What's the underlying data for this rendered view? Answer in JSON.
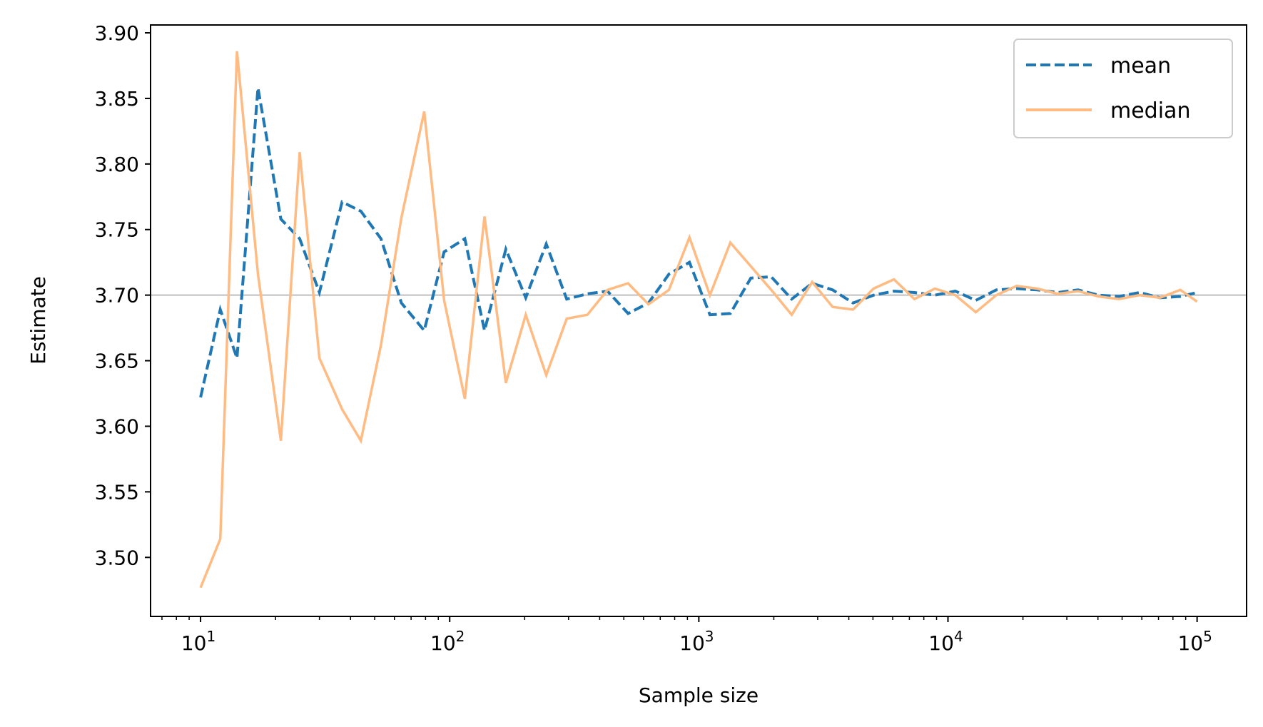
{
  "chart_data": {
    "type": "line",
    "title": "",
    "xlabel": "Sample size",
    "ylabel": "Estimate",
    "xscale": "log",
    "xlim": [
      6.3,
      158000
    ],
    "ylim": [
      3.455,
      3.906
    ],
    "x_ticks": [
      {
        "base": "10",
        "exp": "1",
        "value": 10
      },
      {
        "base": "10",
        "exp": "2",
        "value": 100
      },
      {
        "base": "10",
        "exp": "3",
        "value": 1000
      },
      {
        "base": "10",
        "exp": "4",
        "value": 10000
      },
      {
        "base": "10",
        "exp": "5",
        "value": 100000
      }
    ],
    "y_ticks": [
      "3.50",
      "3.55",
      "3.60",
      "3.65",
      "3.70",
      "3.75",
      "3.80",
      "3.85",
      "3.90"
    ],
    "reference_line": {
      "y": 3.7,
      "color": "#bfbfbf"
    },
    "legend_position": "top-right",
    "series": [
      {
        "name": "mean",
        "color": "#1f77b4",
        "style": "dashed",
        "x": [
          10,
          12,
          14,
          17,
          21,
          25,
          30,
          37,
          44,
          53,
          64,
          79,
          95,
          115,
          138,
          168,
          202,
          244,
          295,
          357,
          430,
          520,
          628,
          759,
          917,
          1108,
          1338,
          1617,
          1953,
          2360,
          2851,
          3444,
          4160,
          5026,
          6072,
          7336,
          8862,
          10706,
          12934,
          15626,
          18877,
          22805,
          27552,
          33285,
          40212,
          48580,
          58690,
          70904,
          85659,
          100000
        ],
        "values": [
          3.622,
          3.689,
          3.652,
          3.858,
          3.758,
          3.743,
          3.702,
          3.771,
          3.764,
          3.743,
          3.694,
          3.673,
          3.733,
          3.743,
          3.673,
          3.735,
          3.698,
          3.739,
          3.697,
          3.701,
          3.703,
          3.686,
          3.694,
          3.716,
          3.725,
          3.685,
          3.686,
          3.713,
          3.714,
          3.697,
          3.709,
          3.704,
          3.694,
          3.7,
          3.703,
          3.702,
          3.7,
          3.703,
          3.696,
          3.704,
          3.705,
          3.704,
          3.702,
          3.704,
          3.7,
          3.699,
          3.702,
          3.698,
          3.699,
          3.702
        ]
      },
      {
        "name": "median",
        "color": "#ffbb82",
        "style": "solid",
        "x": [
          10,
          12,
          14,
          17,
          21,
          25,
          30,
          37,
          44,
          53,
          64,
          79,
          95,
          115,
          138,
          168,
          202,
          244,
          295,
          357,
          430,
          520,
          628,
          759,
          917,
          1108,
          1338,
          1617,
          1953,
          2360,
          2851,
          3444,
          4160,
          5026,
          6072,
          7336,
          8862,
          10706,
          12934,
          15626,
          18877,
          22805,
          27552,
          33285,
          40212,
          48580,
          58690,
          70904,
          85659,
          100000
        ],
        "values": [
          3.477,
          3.514,
          3.886,
          3.716,
          3.589,
          3.809,
          3.652,
          3.613,
          3.589,
          3.662,
          3.759,
          3.84,
          3.696,
          3.621,
          3.76,
          3.633,
          3.685,
          3.639,
          3.682,
          3.685,
          3.704,
          3.709,
          3.693,
          3.704,
          3.744,
          3.7,
          3.74,
          3.722,
          3.704,
          3.685,
          3.71,
          3.691,
          3.689,
          3.705,
          3.712,
          3.697,
          3.705,
          3.7,
          3.687,
          3.7,
          3.707,
          3.705,
          3.701,
          3.703,
          3.699,
          3.697,
          3.7,
          3.698,
          3.704,
          3.695
        ]
      }
    ]
  }
}
